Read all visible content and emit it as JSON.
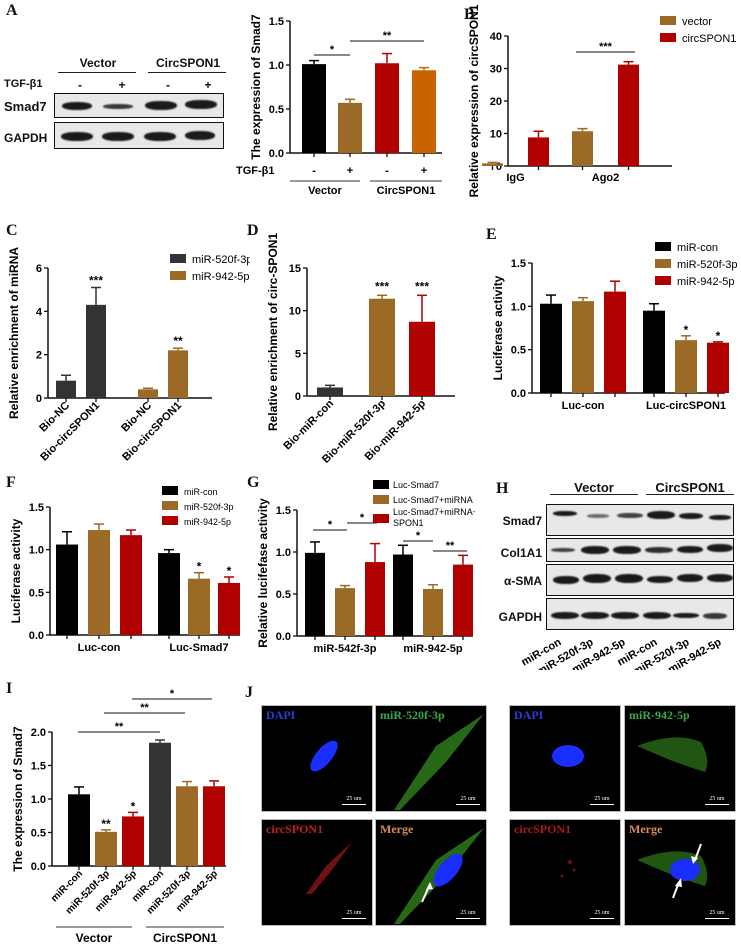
{
  "panel_labels": {
    "A": "A",
    "B": "B",
    "C": "C",
    "D": "D",
    "E": "E",
    "F": "F",
    "G": "G",
    "H": "H",
    "I": "I",
    "J": "J"
  },
  "colors": {
    "black": "#000000",
    "brown": "#9a6a26",
    "red": "#b00000",
    "orange": "#c86400",
    "darkgray": "#333333"
  },
  "blot_A": {
    "groups": [
      "Vector",
      "CircSPON1"
    ],
    "treatment_label": "TGF-β1",
    "treatment_signs": [
      "-",
      "+",
      "-",
      "+"
    ],
    "rows": [
      "Smad7",
      "GAPDH"
    ]
  },
  "blot_H": {
    "groups": [
      "Vector",
      "CircSPON1"
    ],
    "rows": [
      "Smad7",
      "Col1A1",
      "α-SMA",
      "GAPDH"
    ],
    "lanes": [
      "miR-con",
      "miR-520f-3p",
      "miR-942-5p",
      "miR-con",
      "miR-520f-3p",
      "miR-942-5p"
    ]
  },
  "fluorescence_J": {
    "left": {
      "titles": [
        "DAPI",
        "miR-520f-3p",
        "circSPON1",
        "Merge"
      ],
      "scale": "25 um"
    },
    "right": {
      "titles": [
        "DAPI",
        "miR-942-5p",
        "circSPON1",
        "Merge"
      ],
      "scale": "25 um"
    }
  },
  "chart_data": [
    {
      "id": "A",
      "type": "bar",
      "title": "",
      "ylabel": "The expression of Smad7",
      "ylim": [
        0,
        1.5
      ],
      "yticks": [
        "0.0",
        "0.5",
        "1.0",
        "1.5"
      ],
      "treatment_label": "TGF-β1",
      "treatment_signs": [
        "-",
        "+",
        "-",
        "+"
      ],
      "groups": [
        "Vector",
        "CircSPON1"
      ],
      "categories": [
        "Vector -",
        "Vector +",
        "CircSPON1 -",
        "CircSPON1 +"
      ],
      "values": [
        1.01,
        0.57,
        1.02,
        0.94
      ],
      "errors": [
        0.04,
        0.04,
        0.11,
        0.03
      ],
      "bar_colors": [
        "#000000",
        "#9a6a26",
        "#b00000",
        "#c86400"
      ],
      "significance": [
        {
          "from": 0,
          "to": 1,
          "label": "*"
        },
        {
          "from": 1,
          "to": 3,
          "label": "**"
        }
      ]
    },
    {
      "id": "B",
      "type": "bar",
      "ylabel": "Relative expression of circSPON1",
      "ylim": [
        0,
        40
      ],
      "yticks": [
        "0",
        "10",
        "20",
        "30",
        "40"
      ],
      "categories": [
        "IgG",
        "Ago2"
      ],
      "series": [
        {
          "name": "vector",
          "color": "#9a6a26",
          "values": [
            0.8,
            10.7
          ],
          "errors": [
            0.3,
            0.8
          ]
        },
        {
          "name": "circSPON1",
          "color": "#b00000",
          "values": [
            8.8,
            31.2
          ],
          "errors": [
            1.9,
            0.9
          ]
        }
      ],
      "significance": [
        {
          "category": "Ago2",
          "label": "***"
        }
      ]
    },
    {
      "id": "C",
      "type": "bar",
      "ylabel": "Relative enrichment of miRNA",
      "ylim": [
        0,
        6
      ],
      "yticks": [
        "0",
        "2",
        "4",
        "6"
      ],
      "categories": [
        "Bio-NC",
        "Bio-circSPON1",
        "Bio-NC",
        "Bio-circSPON1"
      ],
      "series": [
        {
          "name": "miR-520f-3p",
          "color": "#333333",
          "values": [
            0.8,
            4.3
          ],
          "errors": [
            0.25,
            0.8
          ]
        },
        {
          "name": "miR-942-5p",
          "color": "#9a6a26",
          "values": [
            0.4,
            2.2
          ],
          "errors": [
            0.05,
            0.1
          ]
        }
      ],
      "annotations": [
        "",
        "***",
        "",
        "**"
      ]
    },
    {
      "id": "D",
      "type": "bar",
      "ylabel": "Relative enrichment of circ-SPON1",
      "ylim": [
        0,
        15
      ],
      "yticks": [
        "0",
        "5",
        "10",
        "15"
      ],
      "categories": [
        "Bio-miR-con",
        "Bio-miR-520f-3p",
        "Bio-miR-942-5p"
      ],
      "values": [
        1.0,
        11.4,
        8.7
      ],
      "errors": [
        0.25,
        0.4,
        3.1
      ],
      "bar_colors": [
        "#333333",
        "#9a6a26",
        "#b00000"
      ],
      "annotations": [
        "",
        "***",
        "***"
      ]
    },
    {
      "id": "E",
      "type": "bar",
      "ylabel": "Luciferase activity",
      "ylim": [
        0,
        1.5
      ],
      "yticks": [
        "0.0",
        "0.5",
        "1.0",
        "1.5"
      ],
      "categories": [
        "Luc-con",
        "Luc-circSPON1"
      ],
      "series": [
        {
          "name": "miR-con",
          "color": "#000000",
          "values": [
            1.03,
            0.95
          ],
          "errors": [
            0.1,
            0.08
          ]
        },
        {
          "name": "miR-520f-3p",
          "color": "#9a6a26",
          "values": [
            1.06,
            0.61
          ],
          "errors": [
            0.04,
            0.05
          ]
        },
        {
          "name": "miR-942-5p",
          "color": "#b00000",
          "values": [
            1.17,
            0.58
          ],
          "errors": [
            0.12,
            0.01
          ]
        }
      ],
      "annotations": [
        [
          "",
          "",
          ""
        ],
        [
          "",
          "*",
          "*"
        ]
      ]
    },
    {
      "id": "F",
      "type": "bar",
      "ylabel": "Luciferase activity",
      "ylim": [
        0,
        1.5
      ],
      "yticks": [
        "0.0",
        "0.5",
        "1.0",
        "1.5"
      ],
      "categories": [
        "Luc-con",
        "Luc-Smad7"
      ],
      "series": [
        {
          "name": "miR-con",
          "color": "#000000",
          "values": [
            1.06,
            0.96
          ],
          "errors": [
            0.15,
            0.04
          ]
        },
        {
          "name": "miR-520f-3p",
          "color": "#9a6a26",
          "values": [
            1.23,
            0.66
          ],
          "errors": [
            0.07,
            0.07
          ]
        },
        {
          "name": "miR-942-5p",
          "color": "#b00000",
          "values": [
            1.17,
            0.61
          ],
          "errors": [
            0.06,
            0.07
          ]
        }
      ],
      "annotations": [
        [
          "",
          "",
          ""
        ],
        [
          "",
          "*",
          "*"
        ]
      ]
    },
    {
      "id": "G",
      "type": "bar",
      "ylabel": "Relative lucifefase activity",
      "ylim": [
        0,
        1.5
      ],
      "yticks": [
        "0.0",
        "0.5",
        "1.0",
        "1.5"
      ],
      "categories": [
        "miR-542f-3p",
        "miR-942-5p"
      ],
      "series": [
        {
          "name": "Luc-Smad7",
          "color": "#000000",
          "values": [
            0.99,
            0.97
          ],
          "errors": [
            0.13,
            0.11
          ]
        },
        {
          "name": "Luc-Smad7+miRNA",
          "color": "#9a6a26",
          "values": [
            0.57,
            0.56
          ],
          "errors": [
            0.03,
            0.05
          ]
        },
        {
          "name": "Luc-Smad7+miRNA+circ SPON1",
          "color": "#b00000",
          "values": [
            0.88,
            0.85
          ],
          "errors": [
            0.22,
            0.11
          ]
        }
      ],
      "legend_lines": [
        "Luc-Smad7",
        "Luc-Smad7+miRNA",
        "Luc-Smad7+miRNA+circ",
        "SPON1"
      ],
      "significance": [
        {
          "group": 0,
          "from": 0,
          "to": 1,
          "label": "*"
        },
        {
          "group": 0,
          "from": 1,
          "to": 2,
          "label": "*"
        },
        {
          "group": 1,
          "from": 0,
          "to": 1,
          "label": "*"
        },
        {
          "group": 1,
          "from": 1,
          "to": 2,
          "label": "**"
        }
      ]
    },
    {
      "id": "I",
      "type": "bar",
      "ylabel": "The expression of Smad7",
      "ylim": [
        0,
        2.0
      ],
      "yticks": [
        "0.0",
        "0.5",
        "1.0",
        "1.5",
        "2.0"
      ],
      "categories": [
        "miR-con",
        "miR-520f-3p",
        "miR-942-5p",
        "miR-con",
        "miR-520f-3p",
        "miR-942-5p"
      ],
      "groups": [
        "Vector",
        "CircSPON1"
      ],
      "values": [
        1.07,
        0.51,
        0.74,
        1.84,
        1.19,
        1.19
      ],
      "errors": [
        0.11,
        0.03,
        0.06,
        0.04,
        0.07,
        0.08
      ],
      "bar_colors": [
        "#000000",
        "#9a6a26",
        "#b00000",
        "#333333",
        "#9a6a26",
        "#b00000"
      ],
      "annotations": [
        "",
        "**",
        "*",
        "",
        "",
        ""
      ],
      "significance": [
        {
          "from": 0,
          "to": 3,
          "label": "**"
        },
        {
          "from": 1,
          "to": 4,
          "label": "**"
        },
        {
          "from": 2,
          "to": 5,
          "label": "*"
        }
      ]
    }
  ]
}
